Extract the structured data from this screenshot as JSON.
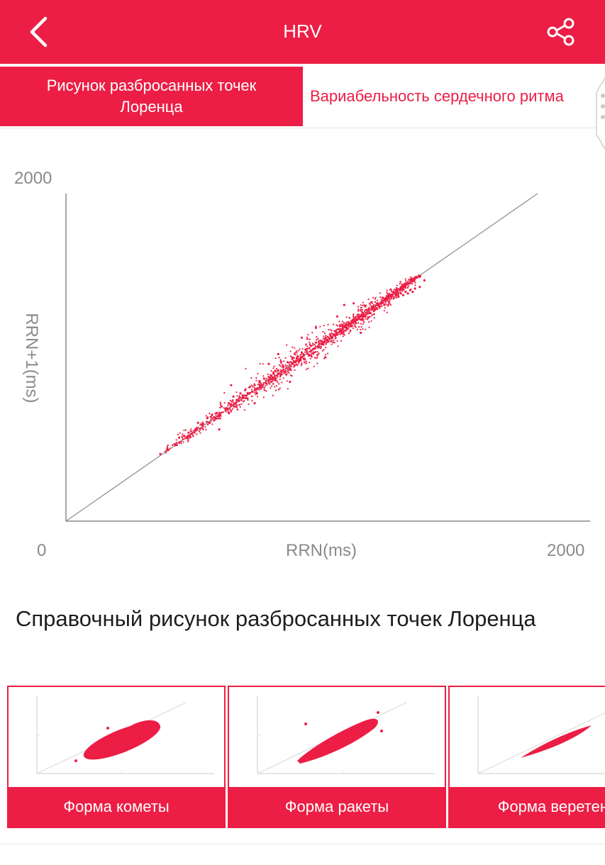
{
  "header": {
    "title": "HRV"
  },
  "tabs": [
    {
      "label": "Рисунок разбросанных точек Лоренца",
      "active": true
    },
    {
      "label": "Вариабельность сердечного ритма",
      "active": false
    }
  ],
  "icons": {
    "back": "chevron-left-icon",
    "share": "share-icon"
  },
  "colors": {
    "accent": "#ec1e45",
    "axis": "#8a8a8a",
    "points": "#ec1e45"
  },
  "chart_data": {
    "type": "scatter",
    "xlabel": "RRN(ms)",
    "ylabel": "RRN+1(ms)",
    "xlim": [
      0,
      2000
    ],
    "ylim": [
      0,
      2000
    ],
    "x_min_label": "0",
    "x_max_label": "2000",
    "y_max_label": "2000",
    "reference_line": "y = x",
    "points": [
      [
        400,
        410
      ],
      [
        430,
        445
      ],
      [
        460,
        470
      ],
      [
        480,
        510
      ],
      [
        500,
        520
      ],
      [
        520,
        540
      ],
      [
        550,
        560
      ],
      [
        560,
        600
      ],
      [
        580,
        590
      ],
      [
        600,
        630
      ],
      [
        610,
        600
      ],
      [
        620,
        650
      ],
      [
        640,
        660
      ],
      [
        650,
        640
      ],
      [
        660,
        700
      ],
      [
        680,
        690
      ],
      [
        690,
        720
      ],
      [
        700,
        710
      ],
      [
        710,
        760
      ],
      [
        720,
        700
      ],
      [
        730,
        740
      ],
      [
        740,
        780
      ],
      [
        750,
        760
      ],
      [
        760,
        800
      ],
      [
        770,
        750
      ],
      [
        780,
        820
      ],
      [
        790,
        790
      ],
      [
        800,
        830
      ],
      [
        810,
        780
      ],
      [
        820,
        850
      ],
      [
        830,
        820
      ],
      [
        840,
        870
      ],
      [
        850,
        840
      ],
      [
        860,
        880
      ],
      [
        870,
        850
      ],
      [
        880,
        900
      ],
      [
        890,
        870
      ],
      [
        900,
        920
      ],
      [
        910,
        890
      ],
      [
        920,
        950
      ],
      [
        930,
        910
      ],
      [
        940,
        970
      ],
      [
        950,
        930
      ],
      [
        960,
        990
      ],
      [
        970,
        950
      ],
      [
        980,
        1000
      ],
      [
        990,
        980
      ],
      [
        1000,
        1030
      ],
      [
        1010,
        990
      ],
      [
        1020,
        1050
      ],
      [
        1030,
        1010
      ],
      [
        1040,
        1070
      ],
      [
        1050,
        1030
      ],
      [
        1060,
        1090
      ],
      [
        1070,
        1060
      ],
      [
        1080,
        1100
      ],
      [
        1090,
        1080
      ],
      [
        1100,
        1120
      ],
      [
        1110,
        1100
      ],
      [
        1120,
        1140
      ],
      [
        1130,
        1120
      ],
      [
        1140,
        1160
      ],
      [
        1150,
        1140
      ],
      [
        1160,
        1170
      ],
      [
        1170,
        1150
      ],
      [
        1180,
        1190
      ],
      [
        1190,
        1170
      ],
      [
        1200,
        1210
      ],
      [
        1210,
        1190
      ],
      [
        1220,
        1230
      ],
      [
        1230,
        1210
      ],
      [
        1240,
        1250
      ],
      [
        1250,
        1230
      ],
      [
        1260,
        1270
      ],
      [
        1270,
        1250
      ],
      [
        1280,
        1290
      ],
      [
        1290,
        1270
      ],
      [
        1300,
        1300
      ],
      [
        1310,
        1290
      ],
      [
        1320,
        1320
      ],
      [
        1330,
        1310
      ],
      [
        1340,
        1330
      ],
      [
        1350,
        1320
      ],
      [
        1360,
        1350
      ],
      [
        1370,
        1340
      ],
      [
        1380,
        1370
      ],
      [
        1390,
        1360
      ],
      [
        1400,
        1380
      ],
      [
        1410,
        1370
      ],
      [
        1420,
        1390
      ],
      [
        1430,
        1380
      ],
      [
        1440,
        1400
      ],
      [
        1450,
        1390
      ],
      [
        1460,
        1410
      ],
      [
        1470,
        1400
      ],
      [
        1480,
        1420
      ],
      [
        1500,
        1430
      ],
      [
        1520,
        1470
      ],
      [
        1180,
        1320
      ],
      [
        1150,
        1250
      ],
      [
        900,
        1020
      ],
      [
        700,
        830
      ],
      [
        860,
        960
      ],
      [
        1000,
        1120
      ],
      [
        1100,
        1000
      ],
      [
        1250,
        1150
      ],
      [
        950,
        850
      ],
      [
        800,
        720
      ],
      [
        650,
        560
      ],
      [
        1060,
        1180
      ],
      [
        1220,
        1330
      ]
    ]
  },
  "reference": {
    "title": "Справочный рисунок разбросанных точек Лоренца",
    "cards": [
      {
        "label": "Форма кометы"
      },
      {
        "label": "Форма ракеты"
      },
      {
        "label": "Форма веретена"
      }
    ]
  }
}
